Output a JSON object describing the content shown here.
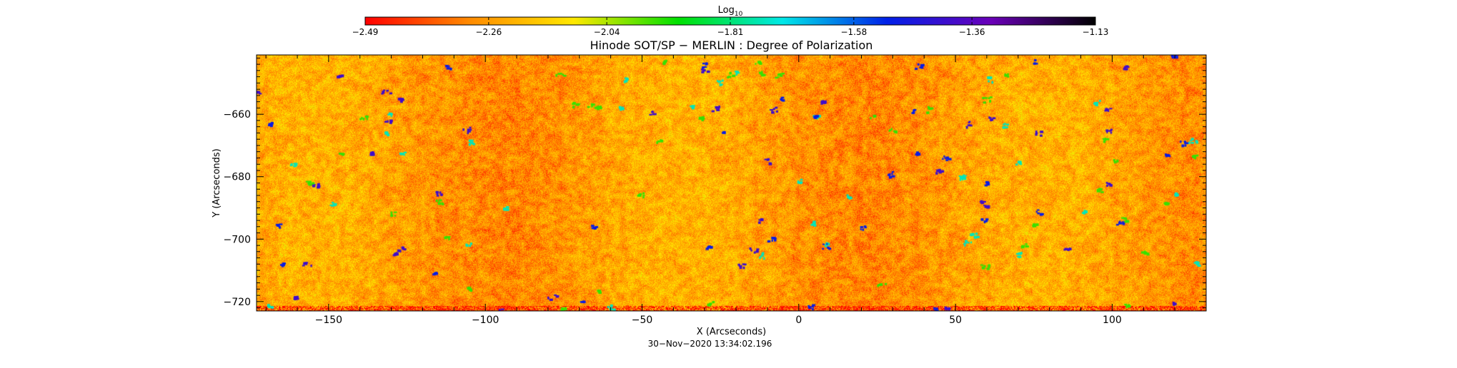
{
  "chart_data": {
    "type": "heatmap",
    "title": "Hinode SOT/SP − MERLIN : Degree of Polarization",
    "xlabel": "X (Arcseconds)",
    "ylabel": "Y (Arcseconds)",
    "xlim": [
      -173,
      130
    ],
    "ylim": [
      -723,
      -641
    ],
    "x_ticks": [
      -150,
      -100,
      -50,
      0,
      50,
      100
    ],
    "x_tick_labels": [
      "−150",
      "−100",
      "−50",
      "0",
      "50",
      "100"
    ],
    "y_ticks": [
      -660,
      -680,
      -700,
      -720
    ],
    "y_tick_labels": [
      "−660",
      "−680",
      "−700",
      "−720"
    ],
    "colorbar": {
      "title": "Log",
      "title_subscript": "10",
      "range": [
        -2.49,
        -1.13
      ],
      "ticks": [
        -2.49,
        -2.26,
        -2.04,
        -1.81,
        -1.58,
        -1.36,
        -1.13
      ],
      "tick_labels": [
        "−2.49",
        "−2.26",
        "−2.04",
        "−1.81",
        "−1.58",
        "−1.36",
        "−1.13"
      ],
      "colors": [
        "#ff0000",
        "#ff8a00",
        "#ffe800",
        "#00e000",
        "#00e8e8",
        "#0020e8",
        "#6a00b8",
        "#000000"
      ]
    },
    "value_distribution": {
      "typical_min": -2.45,
      "typical_max": -2.05,
      "patch_values": [
        -1.95,
        -1.75,
        -1.5,
        -1.4
      ]
    },
    "grid": false,
    "timestamp": "30−Nov−2020 13:34:02.196"
  }
}
